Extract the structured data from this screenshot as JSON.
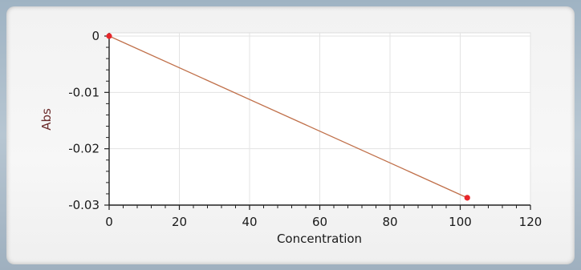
{
  "chart_data": {
    "type": "line",
    "xlabel": "Concentration",
    "ylabel": "Abs",
    "xlim": [
      0,
      120
    ],
    "ylim": [
      -0.03,
      0.001
    ],
    "x_ticks": [
      "0",
      "20",
      "40",
      "60",
      "80",
      "100",
      "120"
    ],
    "y_ticks": [
      "0",
      "-0.01",
      "-0.02",
      "-0.03"
    ],
    "grid": true,
    "series": [
      {
        "x": [
          0,
          102
        ],
        "y": [
          0,
          -0.0287
        ],
        "color": "#c0704a",
        "marker_color": "#e8262a"
      }
    ]
  }
}
